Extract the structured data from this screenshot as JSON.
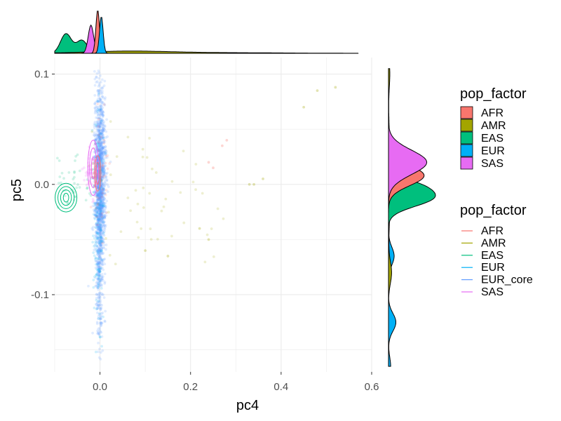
{
  "chart_data": {
    "type": "scatter",
    "title": "",
    "xlabel": "pc4",
    "ylabel": "pc5",
    "xlim": [
      -0.1,
      0.6
    ],
    "ylim": [
      -0.17,
      0.115
    ],
    "x_ticks": [
      0.0,
      0.2,
      0.4,
      0.6
    ],
    "x_tick_labels": [
      "0.0",
      "0.2",
      "0.4",
      "0.6"
    ],
    "y_ticks": [
      0.1,
      0.0,
      -0.1
    ],
    "y_tick_labels": [
      "0.1",
      "0.0",
      "-0.1"
    ],
    "grid": true,
    "legend_position": "right",
    "colors": {
      "AFR": "#F8766D",
      "AMR": "#A3A500",
      "EAS": "#00BF7D",
      "EUR": "#00B0F6",
      "EUR_core": "#619CFF",
      "SAS": "#E76BF3"
    },
    "legend_fill": {
      "title": "pop_factor",
      "entries": [
        {
          "label": "AFR",
          "color": "#F8766D"
        },
        {
          "label": "AMR",
          "color": "#A3A500"
        },
        {
          "label": "EAS",
          "color": "#00BF7D"
        },
        {
          "label": "EUR",
          "color": "#00B0F6"
        },
        {
          "label": "SAS",
          "color": "#E76BF3"
        }
      ]
    },
    "legend_line": {
      "title": "pop_factor",
      "entries": [
        {
          "label": "AFR",
          "color": "#F8766D"
        },
        {
          "label": "AMR",
          "color": "#A3A500"
        },
        {
          "label": "EAS",
          "color": "#00BF7D"
        },
        {
          "label": "EUR",
          "color": "#00B0F6"
        },
        {
          "label": "EUR_core",
          "color": "#619CFF"
        },
        {
          "label": "SAS",
          "color": "#E76BF3"
        }
      ]
    },
    "scatter_groups": [
      {
        "name": "EUR_core",
        "color": "#619CFF",
        "center": [
          0.0,
          0.005
        ],
        "spread": [
          0.006,
          0.04
        ],
        "n": 1400
      },
      {
        "name": "EUR_core",
        "color": "#619CFF",
        "center": [
          0.0,
          -0.08
        ],
        "spread": [
          0.004,
          0.035
        ],
        "n": 220
      },
      {
        "name": "EUR",
        "color": "#00B0F6",
        "center": [
          -0.003,
          -0.03
        ],
        "spread": [
          0.006,
          0.05
        ],
        "n": 160
      },
      {
        "name": "EAS",
        "color": "#00BF7D",
        "center": [
          -0.06,
          0.0
        ],
        "spread": [
          0.025,
          0.01
        ],
        "n": 45
      },
      {
        "name": "SAS",
        "color": "#E76BF3",
        "center": [
          -0.02,
          0.01
        ],
        "spread": [
          0.007,
          0.012
        ],
        "n": 50
      },
      {
        "name": "AMR",
        "color": "#A3A500",
        "center": [
          0.1,
          -0.01
        ],
        "spread": [
          0.08,
          0.03
        ],
        "n": 55
      },
      {
        "name": "AFR",
        "color": "#F8766D",
        "center": [
          0.0,
          0.01
        ],
        "spread": [
          0.012,
          0.03
        ],
        "n": 50
      }
    ],
    "outliers": [
      {
        "x": 0.48,
        "y": 0.085,
        "color": "#A3A500"
      },
      {
        "x": 0.52,
        "y": 0.088,
        "color": "#A3A500"
      },
      {
        "x": 0.45,
        "y": 0.07,
        "color": "#A3A500"
      },
      {
        "x": 0.34,
        "y": 0.0,
        "color": "#A3A500"
      },
      {
        "x": 0.33,
        "y": 0.0,
        "color": "#A3A500"
      },
      {
        "x": 0.36,
        "y": 0.005,
        "color": "#A3A500"
      },
      {
        "x": 0.24,
        "y": 0.02,
        "color": "#F8766D"
      },
      {
        "x": 0.25,
        "y": 0.015,
        "color": "#F8766D"
      },
      {
        "x": 0.27,
        "y": 0.035,
        "color": "#F8766D"
      },
      {
        "x": 0.28,
        "y": 0.04,
        "color": "#F8766D"
      },
      {
        "x": 0.24,
        "y": -0.05,
        "color": "#A3A500"
      },
      {
        "x": 0.22,
        "y": -0.04,
        "color": "#A3A500"
      },
      {
        "x": 0.15,
        "y": -0.065,
        "color": "#A3A500"
      },
      {
        "x": 0.1,
        "y": -0.06,
        "color": "#A3A500"
      }
    ],
    "contours": [
      {
        "name": "EAS",
        "color": "#00BF7D",
        "center": [
          -0.075,
          -0.012
        ],
        "radii": [
          [
            0.006,
            0.004
          ],
          [
            0.012,
            0.007
          ],
          [
            0.018,
            0.01
          ],
          [
            0.024,
            0.013
          ]
        ]
      },
      {
        "name": "SAS",
        "color": "#E76BF3",
        "center": [
          -0.015,
          0.015
        ],
        "radii": [
          [
            0.004,
            0.01
          ],
          [
            0.008,
            0.018
          ],
          [
            0.012,
            0.025
          ]
        ]
      },
      {
        "name": "AFR",
        "color": "#F8766D",
        "center": [
          -0.005,
          0.01
        ],
        "radii": [
          [
            0.004,
            0.01
          ],
          [
            0.007,
            0.016
          ]
        ]
      }
    ],
    "top_density": [
      {
        "name": "EAS",
        "color": "#00BF7D",
        "peaks": [
          [
            -0.075,
            0.012,
            0.45
          ],
          [
            -0.04,
            0.012,
            0.3
          ]
        ]
      },
      {
        "name": "AMR",
        "color": "#A3A500",
        "peaks": [
          [
            0.06,
            0.09,
            0.045
          ],
          [
            0.25,
            0.15,
            0.015
          ]
        ]
      },
      {
        "name": "SAS",
        "color": "#E76BF3",
        "peaks": [
          [
            -0.02,
            0.006,
            0.65
          ]
        ]
      },
      {
        "name": "AFR",
        "color": "#F8766D",
        "peaks": [
          [
            -0.005,
            0.004,
            1.0
          ]
        ]
      },
      {
        "name": "EUR",
        "color": "#00B0F6",
        "peaks": [
          [
            0.003,
            0.004,
            0.85
          ]
        ]
      }
    ],
    "right_density": [
      {
        "name": "EUR",
        "color": "#00B0F6",
        "peaks": [
          [
            -0.165,
            0.008,
            0.05
          ],
          [
            -0.125,
            0.008,
            0.17
          ],
          [
            -0.065,
            0.008,
            0.13
          ],
          [
            -0.02,
            0.006,
            0.14
          ],
          [
            0.0,
            0.01,
            0.08
          ]
        ]
      },
      {
        "name": "AMR",
        "color": "#A3A500",
        "peaks": [
          [
            -0.08,
            0.01,
            0.07
          ],
          [
            0.1,
            0.012,
            0.03
          ],
          [
            0.005,
            0.03,
            0.05
          ]
        ]
      },
      {
        "name": "EAS",
        "color": "#00BF7D",
        "peaks": [
          [
            -0.012,
            0.008,
            1.0
          ],
          [
            0.0,
            0.006,
            0.45
          ]
        ]
      },
      {
        "name": "AFR",
        "color": "#F8766D",
        "peaks": [
          [
            0.008,
            0.009,
            0.82
          ]
        ]
      },
      {
        "name": "SAS",
        "color": "#E76BF3",
        "peaks": [
          [
            0.02,
            0.011,
            0.88
          ]
        ]
      }
    ]
  }
}
